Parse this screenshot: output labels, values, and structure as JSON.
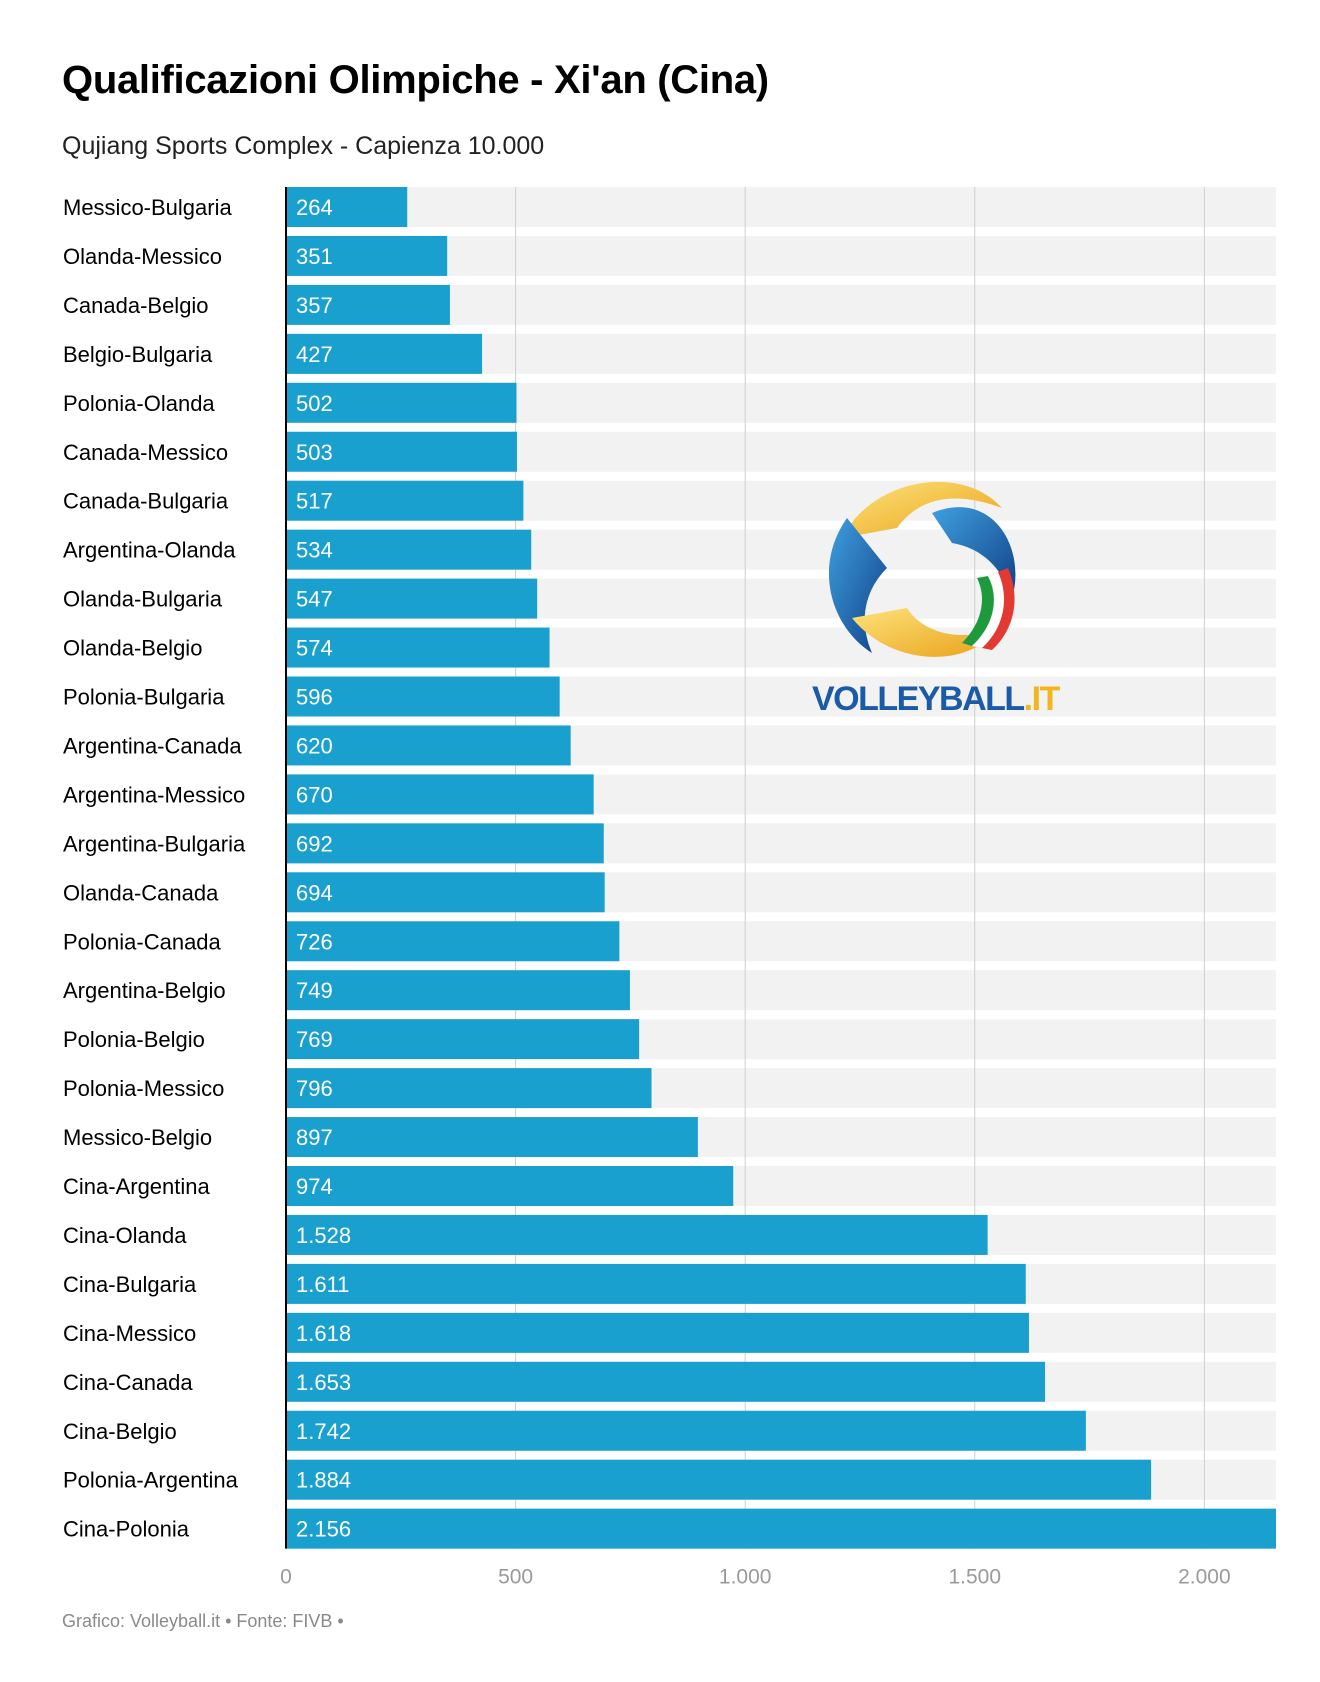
{
  "title": "Qualificazioni Olimpiche - Xi'an (Cina)",
  "subtitle": "Qujiang Sports Complex - Capienza 10.000",
  "footer": "Grafico: Volleyball.it • Fonte: FIVB •",
  "logo": {
    "name": "VOLLEYBALL",
    "suffix": ".IT",
    "colors": {
      "blue": "#1b5aa6",
      "gold": "#f2b51e",
      "green": "#1e9a3c",
      "red": "#e23a33"
    }
  },
  "colors": {
    "bar": "#1aa0cf",
    "track": "#f2f2f2",
    "grid": "#cfcfcf",
    "bar_label": "#ffffff",
    "category_label": "#000000",
    "tick_label": "#9a9a9a"
  },
  "chart_data": {
    "type": "bar",
    "orientation": "horizontal",
    "categories": [
      "Messico-Bulgaria",
      "Olanda-Messico",
      "Canada-Belgio",
      "Belgio-Bulgaria",
      "Polonia-Olanda",
      "Canada-Messico",
      "Canada-Bulgaria",
      "Argentina-Olanda",
      "Olanda-Bulgaria",
      "Olanda-Belgio",
      "Polonia-Bulgaria",
      "Argentina-Canada",
      "Argentina-Messico",
      "Argentina-Bulgaria",
      "Olanda-Canada",
      "Polonia-Canada",
      "Argentina-Belgio",
      "Polonia-Belgio",
      "Polonia-Messico",
      "Messico-Belgio",
      "Cina-Argentina",
      "Cina-Olanda",
      "Cina-Bulgaria",
      "Cina-Messico",
      "Cina-Canada",
      "Cina-Belgio",
      "Polonia-Argentina",
      "Cina-Polonia"
    ],
    "values": [
      264,
      351,
      357,
      427,
      502,
      503,
      517,
      534,
      547,
      574,
      596,
      620,
      670,
      692,
      694,
      726,
      749,
      769,
      796,
      897,
      974,
      1528,
      1611,
      1618,
      1653,
      1742,
      1884,
      2156
    ],
    "value_labels": [
      "264",
      "351",
      "357",
      "427",
      "502",
      "503",
      "517",
      "534",
      "547",
      "574",
      "596",
      "620",
      "670",
      "692",
      "694",
      "726",
      "749",
      "769",
      "796",
      "897",
      "974",
      "1.528",
      "1.611",
      "1.618",
      "1.653",
      "1.742",
      "1.884",
      "2.156"
    ],
    "xlim": [
      0,
      2156
    ],
    "xticks": [
      0,
      500,
      1000,
      1500,
      2000
    ],
    "xtick_labels": [
      "0",
      "500",
      "1.000",
      "1.500",
      "2.000"
    ],
    "grid": true
  }
}
